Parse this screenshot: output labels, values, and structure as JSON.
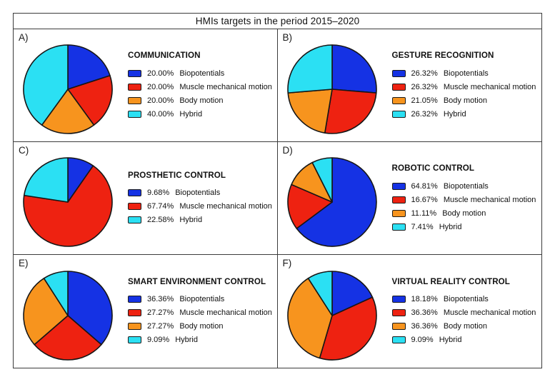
{
  "figure_title": "HMIs targets in the period 2015–2020",
  "palette": {
    "biopotentials": "#1532e4",
    "muscle_mechanical_motion": "#ee2211",
    "body_motion": "#f7941e",
    "hybrid": "#2be0f3",
    "outline": "#161616"
  },
  "chart_data": [
    {
      "type": "pie",
      "panel_label": "A)",
      "title": "COMMUNICATION",
      "legend_position": "right",
      "start_angle_deg": -90,
      "direction": "clockwise",
      "slices": [
        {
          "label": "Biopotentials",
          "pct_label": "20.00%",
          "value": 20.0,
          "color_key": "biopotentials"
        },
        {
          "label": "Muscle mechanical motion",
          "pct_label": "20.00%",
          "value": 20.0,
          "color_key": "muscle_mechanical_motion"
        },
        {
          "label": "Body motion",
          "pct_label": "20.00%",
          "value": 20.0,
          "color_key": "body_motion"
        },
        {
          "label": "Hybrid",
          "pct_label": "40.00%",
          "value": 40.0,
          "color_key": "hybrid"
        }
      ]
    },
    {
      "type": "pie",
      "panel_label": "B)",
      "title": "GESTURE RECOGNITION",
      "legend_position": "right",
      "start_angle_deg": -90,
      "direction": "clockwise",
      "slices": [
        {
          "label": "Biopotentials",
          "pct_label": "26.32%",
          "value": 26.32,
          "color_key": "biopotentials"
        },
        {
          "label": "Muscle mechanical motion",
          "pct_label": "26.32%",
          "value": 26.32,
          "color_key": "muscle_mechanical_motion"
        },
        {
          "label": "Body motion",
          "pct_label": "21.05%",
          "value": 21.05,
          "color_key": "body_motion"
        },
        {
          "label": "Hybrid",
          "pct_label": "26.32%",
          "value": 26.32,
          "color_key": "hybrid"
        }
      ]
    },
    {
      "type": "pie",
      "panel_label": "C)",
      "title": "PROSTHETIC CONTROL",
      "legend_position": "right",
      "start_angle_deg": -90,
      "direction": "clockwise",
      "slices": [
        {
          "label": "Biopotentials",
          "pct_label": "9.68%",
          "value": 9.68,
          "color_key": "biopotentials"
        },
        {
          "label": "Muscle mechanical motion",
          "pct_label": "67.74%",
          "value": 67.74,
          "color_key": "muscle_mechanical_motion"
        },
        {
          "label": "Hybrid",
          "pct_label": "22.58%",
          "value": 22.58,
          "color_key": "hybrid"
        }
      ]
    },
    {
      "type": "pie",
      "panel_label": "D)",
      "title": "ROBOTIC CONTROL",
      "legend_position": "right",
      "start_angle_deg": -90,
      "direction": "clockwise",
      "slices": [
        {
          "label": "Biopotentials",
          "pct_label": "64.81%",
          "value": 64.81,
          "color_key": "biopotentials"
        },
        {
          "label": "Muscle mechanical motion",
          "pct_label": "16.67%",
          "value": 16.67,
          "color_key": "muscle_mechanical_motion"
        },
        {
          "label": "Body motion",
          "pct_label": "11.11%",
          "value": 11.11,
          "color_key": "body_motion"
        },
        {
          "label": "Hybrid",
          "pct_label": "7.41%",
          "value": 7.41,
          "color_key": "hybrid"
        }
      ]
    },
    {
      "type": "pie",
      "panel_label": "E)",
      "title": "SMART ENVIRONMENT CONTROL",
      "legend_position": "right",
      "start_angle_deg": -90,
      "direction": "clockwise",
      "slices": [
        {
          "label": "Biopotentials",
          "pct_label": "36.36%",
          "value": 36.36,
          "color_key": "biopotentials"
        },
        {
          "label": "Muscle mechanical motion",
          "pct_label": "27.27%",
          "value": 27.27,
          "color_key": "muscle_mechanical_motion"
        },
        {
          "label": "Body motion",
          "pct_label": "27.27%",
          "value": 27.27,
          "color_key": "body_motion"
        },
        {
          "label": "Hybrid",
          "pct_label": "9.09%",
          "value": 9.09,
          "color_key": "hybrid"
        }
      ]
    },
    {
      "type": "pie",
      "panel_label": "F)",
      "title": "VIRTUAL REALITY CONTROL",
      "legend_position": "right",
      "start_angle_deg": -90,
      "direction": "clockwise",
      "slices": [
        {
          "label": "Biopotentials",
          "pct_label": "18.18%",
          "value": 18.18,
          "color_key": "biopotentials"
        },
        {
          "label": "Muscle mechanical motion",
          "pct_label": "36.36%",
          "value": 36.36,
          "color_key": "muscle_mechanical_motion"
        },
        {
          "label": "Body motion",
          "pct_label": "36.36%",
          "value": 36.36,
          "color_key": "body_motion"
        },
        {
          "label": "Hybrid",
          "pct_label": "9.09%",
          "value": 9.09,
          "color_key": "hybrid"
        }
      ]
    }
  ]
}
